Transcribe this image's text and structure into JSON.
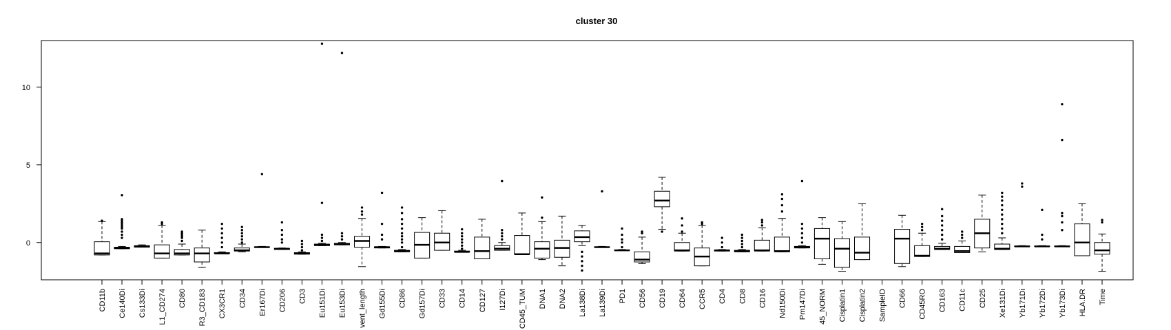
{
  "chart_data": {
    "type": "boxplot",
    "title": "cluster 30",
    "xlabel": "",
    "ylabel": "",
    "ylim": [
      -2.4,
      13.0
    ],
    "yticks": [
      0,
      5,
      10
    ],
    "grid": false,
    "legend": "none",
    "box_color": "#000000",
    "categories": [
      "CD11b",
      "Ce140Di",
      "Cs133Di",
      "L1_CD274",
      "CD80",
      "R3_CD183",
      "CX3CR1",
      "CD34",
      "Er167Di",
      "CD206",
      "CD3",
      "Eu151Di",
      "Eu153Di",
      "vent_length",
      "Gd155Di",
      "CD86",
      "Gd157Di",
      "CD33",
      "CD14",
      "CD127",
      "I127Di",
      "CD45_TUM",
      "DNA1",
      "DNA2",
      "La138Di",
      "La139Di",
      "PD1",
      "CD56",
      "CD19",
      "CD64",
      "CCR5",
      "CD4",
      "CD8",
      "CD16",
      "Nd150Di",
      "Pm147Di",
      "45_NORM",
      "Cisplatin1",
      "Cisplatin2",
      "SampleID",
      "CD66",
      "CD45RO",
      "CD163",
      "CD11c",
      "CD25",
      "Xe131Di",
      "Yb171Di",
      "Yb172Di",
      "Yb173Di",
      "HLA.DR",
      "Time"
    ],
    "series": [
      {
        "label": "CD11b",
        "stats": [
          -0.8,
          -0.8,
          -0.7,
          0.05,
          1.35
        ],
        "outliers": [
          1.4
        ]
      },
      {
        "label": "Ce140Di",
        "stats": [
          -0.4,
          -0.4,
          -0.35,
          -0.3,
          -0.25
        ],
        "outliers": [
          0.3,
          0.5,
          0.7,
          0.9,
          1.0,
          1.1,
          1.2,
          1.3,
          1.4,
          1.5,
          3.05
        ]
      },
      {
        "label": "Cs133Di",
        "stats": [
          -0.3,
          -0.3,
          -0.25,
          -0.2,
          -0.15
        ],
        "outliers": []
      },
      {
        "label": "L1_CD274",
        "stats": [
          -1.0,
          -1.0,
          -0.7,
          -0.15,
          1.1
        ],
        "outliers": [
          1.2,
          1.3
        ]
      },
      {
        "label": "CD80",
        "stats": [
          -0.8,
          -0.8,
          -0.7,
          -0.45,
          -0.1
        ],
        "outliers": [
          0.1,
          0.3,
          0.4,
          0.5,
          0.6,
          0.7
        ]
      },
      {
        "label": "R3_CD183",
        "stats": [
          -1.6,
          -1.25,
          -0.7,
          -0.35,
          0.8
        ],
        "outliers": []
      },
      {
        "label": "CX3CR1",
        "stats": [
          -0.7,
          -0.7,
          -0.7,
          -0.65,
          -0.6
        ],
        "outliers": [
          -0.3,
          0.0,
          0.3,
          0.6,
          0.9,
          1.2
        ]
      },
      {
        "label": "CD34",
        "stats": [
          -0.6,
          -0.55,
          -0.5,
          -0.35,
          -0.1
        ],
        "outliers": [
          0.0,
          0.2,
          0.4,
          0.6,
          0.8,
          1.0
        ]
      },
      {
        "label": "Er167Di",
        "stats": [
          -0.3,
          -0.3,
          -0.3,
          -0.28,
          -0.25
        ],
        "outliers": [
          4.4
        ]
      },
      {
        "label": "CD206",
        "stats": [
          -0.45,
          -0.45,
          -0.4,
          -0.38,
          -0.35
        ],
        "outliers": [
          0.0,
          0.2,
          0.5,
          0.8,
          1.3
        ]
      },
      {
        "label": "CD3",
        "stats": [
          -0.75,
          -0.75,
          -0.7,
          -0.65,
          -0.6
        ],
        "outliers": [
          -0.5,
          -0.3,
          -0.1,
          0.1
        ]
      },
      {
        "label": "Eu151Di",
        "stats": [
          -0.2,
          -0.2,
          -0.15,
          -0.1,
          -0.05
        ],
        "outliers": [
          0.1,
          0.3,
          0.5,
          2.55,
          12.8
        ]
      },
      {
        "label": "Eu153Di",
        "stats": [
          -0.15,
          -0.15,
          -0.1,
          -0.05,
          0.0
        ],
        "outliers": [
          0.2,
          0.4,
          0.6,
          12.2
        ]
      },
      {
        "label": "vent_length",
        "stats": [
          -1.55,
          -0.3,
          0.1,
          0.4,
          1.55
        ],
        "outliers": [
          1.8,
          2.0,
          2.25
        ]
      },
      {
        "label": "Gd155Di",
        "stats": [
          -0.35,
          -0.35,
          -0.3,
          -0.28,
          -0.25
        ],
        "outliers": [
          0.2,
          0.5,
          1.2,
          3.2
        ]
      },
      {
        "label": "CD86",
        "stats": [
          -0.6,
          -0.6,
          -0.55,
          -0.5,
          -0.45
        ],
        "outliers": [
          -0.3,
          0.0,
          0.2,
          0.4,
          0.6,
          0.9,
          1.2,
          1.5,
          1.9,
          2.25
        ]
      },
      {
        "label": "Gd157Di",
        "stats": [
          -1.0,
          -1.0,
          -0.15,
          0.65,
          1.6
        ],
        "outliers": []
      },
      {
        "label": "CD33",
        "stats": [
          -0.5,
          -0.5,
          0.0,
          0.6,
          2.05
        ],
        "outliers": []
      },
      {
        "label": "CD14",
        "stats": [
          -0.6,
          -0.6,
          -0.6,
          -0.55,
          -0.5
        ],
        "outliers": [
          -0.4,
          -0.2,
          0.0,
          0.2,
          0.4,
          0.6,
          0.85
        ]
      },
      {
        "label": "CD127",
        "stats": [
          -1.05,
          -1.05,
          -0.55,
          0.35,
          1.5
        ],
        "outliers": []
      },
      {
        "label": "I127Di",
        "stats": [
          -0.5,
          -0.5,
          -0.4,
          -0.2,
          0.0
        ],
        "outliers": [
          0.2,
          0.4,
          0.6,
          0.8,
          3.95
        ]
      },
      {
        "label": "CD45_TUM",
        "stats": [
          -0.75,
          -0.75,
          -0.75,
          0.45,
          1.9
        ],
        "outliers": []
      },
      {
        "label": "DNA1",
        "stats": [
          -1.1,
          -1.0,
          -0.4,
          0.05,
          1.35
        ],
        "outliers": [
          1.6,
          2.9
        ]
      },
      {
        "label": "DNA2",
        "stats": [
          -1.5,
          -0.95,
          -0.35,
          0.15,
          1.7
        ],
        "outliers": []
      },
      {
        "label": "La138Di",
        "stats": [
          -0.2,
          0.05,
          0.35,
          0.75,
          1.1
        ],
        "outliers": [
          -0.6,
          -0.9,
          -1.2,
          -1.5,
          -1.8
        ]
      },
      {
        "label": "La139Di",
        "stats": [
          -0.3,
          -0.3,
          -0.3,
          -0.28,
          -0.25
        ],
        "outliers": [
          3.3
        ]
      },
      {
        "label": "PD1",
        "stats": [
          -0.5,
          -0.5,
          -0.5,
          -0.48,
          -0.45
        ],
        "outliers": [
          -0.3,
          0.0,
          0.2,
          0.5,
          0.9
        ]
      },
      {
        "label": "CD56",
        "stats": [
          -1.35,
          -1.25,
          -1.1,
          -0.6,
          0.35
        ],
        "outliers": [
          0.6,
          0.7
        ]
      },
      {
        "label": "CD19",
        "stats": [
          0.85,
          2.3,
          2.7,
          3.3,
          4.2
        ],
        "outliers": [
          0.7
        ]
      },
      {
        "label": "CD64",
        "stats": [
          -0.55,
          -0.55,
          -0.5,
          0.0,
          0.6
        ],
        "outliers": [
          0.7,
          1.1,
          1.55
        ]
      },
      {
        "label": "CCR5",
        "stats": [
          -1.5,
          -1.5,
          -0.9,
          -0.35,
          1.1
        ],
        "outliers": [
          1.2,
          1.3
        ]
      },
      {
        "label": "CD4",
        "stats": [
          -0.55,
          -0.55,
          -0.5,
          -0.48,
          -0.45
        ],
        "outliers": [
          -0.3,
          0.0,
          0.3
        ]
      },
      {
        "label": "CD8",
        "stats": [
          -0.6,
          -0.6,
          -0.55,
          -0.5,
          -0.45
        ],
        "outliers": [
          -0.3,
          -0.1,
          0.1,
          0.3,
          0.5
        ]
      },
      {
        "label": "CD16",
        "stats": [
          -0.55,
          -0.55,
          -0.5,
          0.15,
          0.95
        ],
        "outliers": [
          1.1,
          1.3,
          1.45
        ]
      },
      {
        "label": "Nd150Di",
        "stats": [
          -0.6,
          -0.6,
          -0.55,
          0.35,
          1.55
        ],
        "outliers": [
          2.0,
          2.4,
          2.8,
          3.1
        ]
      },
      {
        "label": "Pm147Di",
        "stats": [
          -0.35,
          -0.35,
          -0.3,
          -0.25,
          -0.2
        ],
        "outliers": [
          0.0,
          0.3,
          0.6,
          0.9,
          1.2,
          3.95
        ]
      },
      {
        "label": "45_NORM",
        "stats": [
          -1.4,
          -1.05,
          0.25,
          0.9,
          1.6
        ],
        "outliers": []
      },
      {
        "label": "Cisplatin1",
        "stats": [
          -1.85,
          -1.6,
          -0.4,
          0.25,
          1.35
        ],
        "outliers": []
      },
      {
        "label": "Cisplatin2",
        "stats": [
          -1.1,
          -1.1,
          -0.65,
          0.35,
          2.5
        ],
        "outliers": []
      },
      {
        "label": "SampleID",
        "stats": null,
        "outliers": []
      },
      {
        "label": "CD66",
        "stats": [
          -1.55,
          -1.35,
          0.25,
          0.85,
          1.75
        ],
        "outliers": []
      },
      {
        "label": "CD45RO",
        "stats": [
          -0.9,
          -0.9,
          -0.85,
          -0.2,
          0.6
        ],
        "outliers": [
          0.8,
          1.0,
          1.2
        ]
      },
      {
        "label": "CD163",
        "stats": [
          -0.45,
          -0.45,
          -0.4,
          -0.25,
          -0.05
        ],
        "outliers": [
          0.2,
          0.5,
          0.8,
          1.1,
          1.4,
          1.7,
          2.15
        ]
      },
      {
        "label": "CD11c",
        "stats": [
          -0.65,
          -0.65,
          -0.55,
          -0.25,
          0.1
        ],
        "outliers": [
          0.3,
          0.5,
          0.7
        ]
      },
      {
        "label": "CD25",
        "stats": [
          -0.6,
          -0.35,
          0.6,
          1.5,
          3.05
        ],
        "outliers": []
      },
      {
        "label": "Xe131Di",
        "stats": [
          -0.45,
          -0.45,
          -0.4,
          -0.1,
          0.3
        ],
        "outliers": [
          0.6,
          0.9,
          1.2,
          1.5,
          1.8,
          2.1,
          2.4,
          2.7,
          2.95,
          3.2
        ]
      },
      {
        "label": "Yb171Di",
        "stats": [
          -0.25,
          -0.25,
          -0.25,
          -0.23,
          -0.2
        ],
        "outliers": [
          3.6,
          3.8
        ]
      },
      {
        "label": "Yb172Di",
        "stats": [
          -0.25,
          -0.25,
          -0.25,
          -0.23,
          -0.2
        ],
        "outliers": [
          0.2,
          0.5,
          2.1
        ]
      },
      {
        "label": "Yb173Di",
        "stats": [
          -0.25,
          -0.25,
          -0.25,
          -0.23,
          -0.2
        ],
        "outliers": [
          0.8,
          1.3,
          1.7,
          1.9,
          6.6,
          8.9
        ]
      },
      {
        "label": "HLA.DR",
        "stats": [
          -0.85,
          -0.85,
          0.0,
          1.2,
          2.5
        ],
        "outliers": []
      },
      {
        "label": "Time",
        "stats": [
          -1.85,
          -0.75,
          -0.5,
          0.0,
          0.55
        ],
        "outliers": [
          1.3,
          1.45
        ]
      }
    ]
  }
}
